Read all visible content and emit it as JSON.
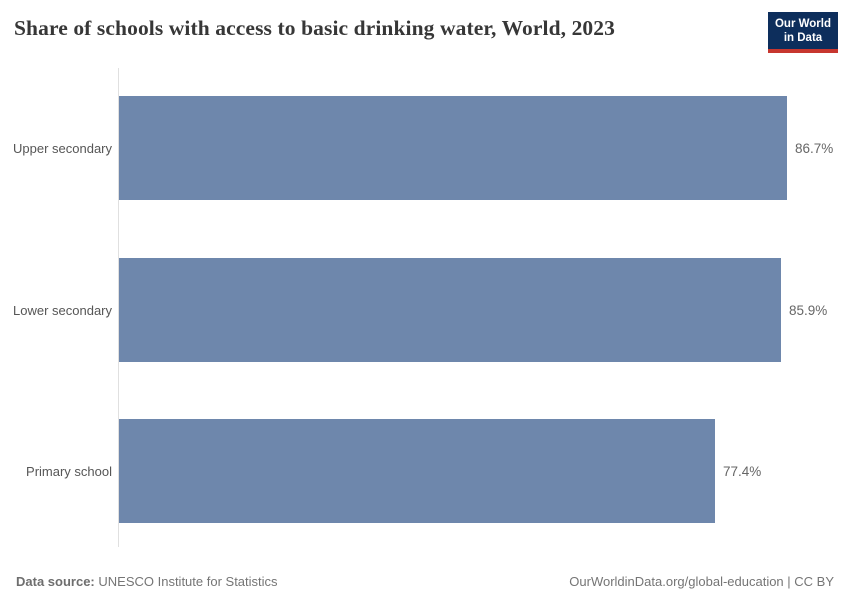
{
  "header": {
    "title": "Share of schools with access to basic drinking water, World, 2023",
    "logo": {
      "line1": "Our World",
      "line2": "in Data"
    }
  },
  "chart_data": {
    "type": "bar",
    "orientation": "horizontal",
    "title": "Share of schools with access to basic drinking water, World, 2023",
    "categories": [
      "Upper secondary",
      "Lower secondary",
      "Primary school"
    ],
    "values": [
      86.7,
      85.9,
      77.4
    ],
    "value_labels": [
      "86.7%",
      "85.9%",
      "77.4%"
    ],
    "unit": "%",
    "xlim": [
      0,
      86.7
    ],
    "grid": false,
    "legend": "none",
    "year": "2023",
    "entity": "World"
  },
  "footer": {
    "datasource_label": "Data source:",
    "datasource_value": "UNESCO Institute for Statistics",
    "link_text": "OurWorldinData.org/global-education | CC BY"
  },
  "colors": {
    "bar": "#6e87ac",
    "axis_line": "#e0e0e0",
    "title_text": "#373737",
    "category_text": "#565656",
    "value_text": "#666666",
    "footer_text": "#757575",
    "logo_background": "#0d2e5c",
    "logo_accent": "#c7362f"
  }
}
